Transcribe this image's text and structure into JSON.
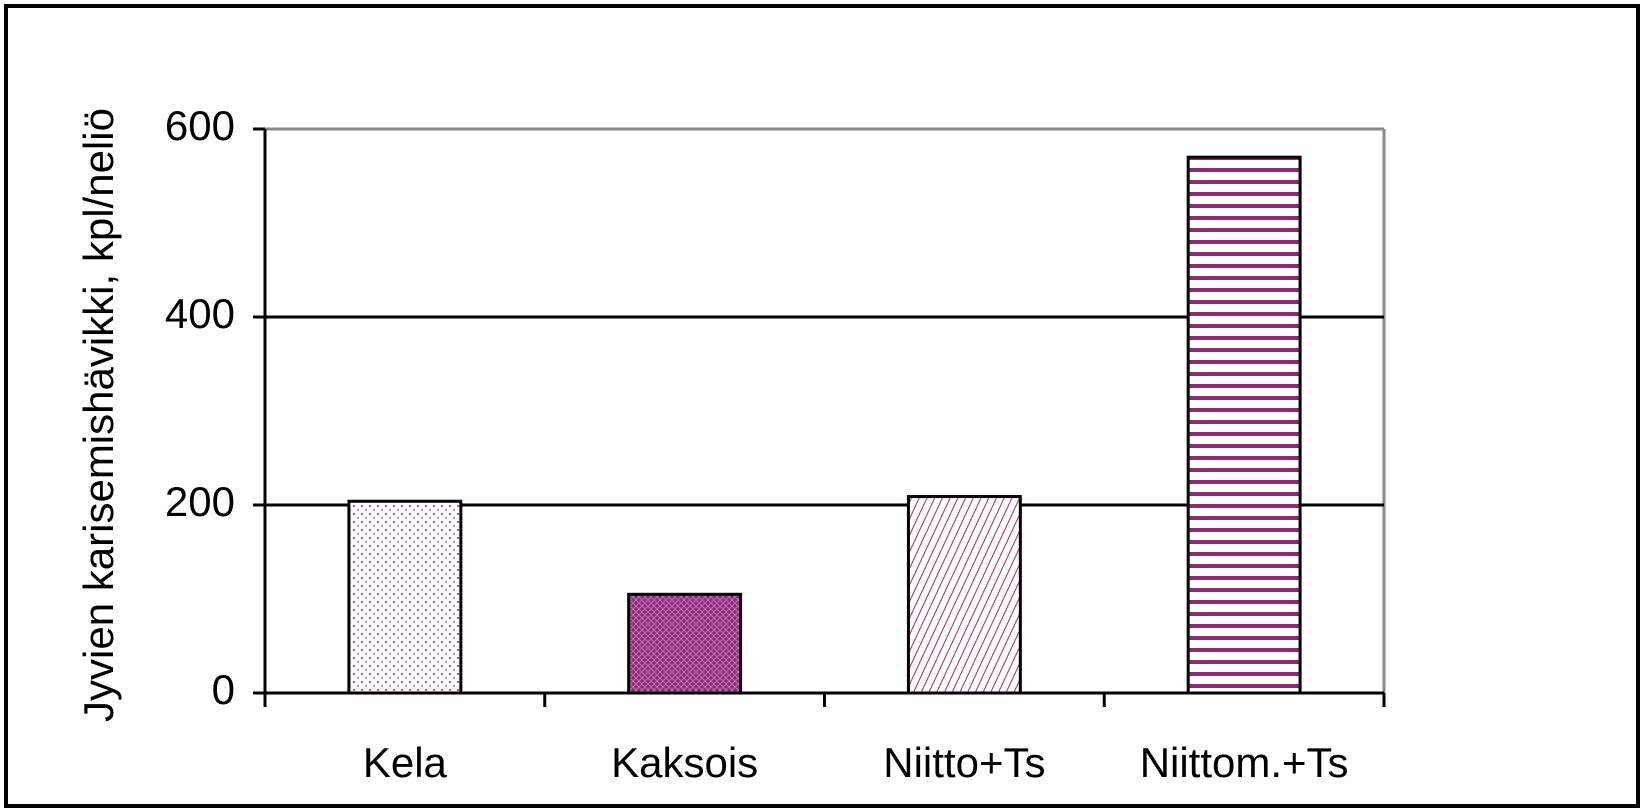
{
  "chart_data": {
    "type": "bar",
    "y_label": "Jyvien karisemishävikki, kpl/neliö",
    "categories": [
      "Kela",
      "Kaksois",
      "Niitto+Ts",
      "Niittom.+Ts"
    ],
    "values": [
      204,
      105,
      209,
      570
    ],
    "ylim": [
      0,
      600
    ],
    "yticks": [
      0,
      200,
      400,
      600
    ],
    "grid": true
  }
}
